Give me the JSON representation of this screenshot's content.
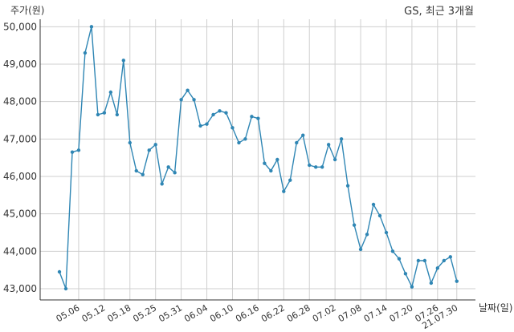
{
  "chart_data": {
    "type": "line",
    "title": "GS, 최근 3개월",
    "xlabel": "날짜(일)",
    "ylabel": "주가(원)",
    "ylim": [
      42700,
      50200
    ],
    "yticks": [
      43000,
      44000,
      45000,
      46000,
      47000,
      48000,
      49000,
      50000
    ],
    "ytick_labels": [
      "43,000",
      "44,000",
      "45,000",
      "46,000",
      "47,000",
      "48,000",
      "49,000",
      "50,000"
    ],
    "x_tick_labels": [
      "05.06",
      "05.12",
      "05.18",
      "05.25",
      "05.31",
      "06.04",
      "06.10",
      "06.16",
      "06.22",
      "06.28",
      "07.02",
      "07.08",
      "07.14",
      "07.20",
      "07.26",
      "21.07.30"
    ],
    "x_tick_indices": [
      3,
      7,
      11,
      15,
      19,
      23,
      27,
      31,
      35,
      39,
      43,
      47,
      51,
      55,
      59,
      62
    ],
    "grid": true,
    "line_color": "#2f86b4",
    "series": [
      {
        "values": [
          43450,
          43000,
          46650,
          46700,
          49300,
          50000,
          47650,
          47700,
          48250,
          47650,
          49100,
          46900,
          46150,
          46050,
          46700,
          46850,
          45800,
          46250,
          46100,
          48050,
          48300,
          48050,
          47350,
          47400,
          47650,
          47750,
          47700,
          47300,
          46900,
          47000,
          47600,
          47550,
          46350,
          46150,
          46450,
          45600,
          45900,
          46900,
          47100,
          46300,
          46250,
          46250,
          46850,
          46450,
          47000,
          45750,
          44700,
          44050,
          44450,
          45250,
          44950,
          44500,
          44000,
          43800,
          43400,
          43050,
          43750,
          43750,
          43150,
          43550,
          43750,
          43850,
          43200
        ]
      }
    ]
  }
}
